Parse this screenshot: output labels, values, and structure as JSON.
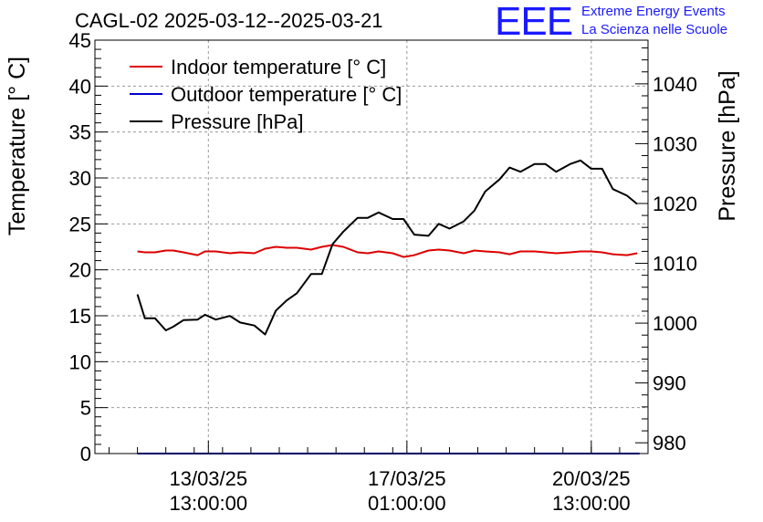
{
  "logo": {
    "mark": "EEE",
    "line1": "Extreme Energy Events",
    "line2": "La Scienza nelle Scuole"
  },
  "colors": {
    "indoor": "#dd0000",
    "outdoor": "#0000cc",
    "pressure": "#000000",
    "logo": "#1a1aff"
  },
  "chart_data": {
    "type": "line",
    "title": "CAGL-02 2025-03-12--2025-03-21",
    "ylabel": "Temperature [° C]",
    "y2label": "Pressure [hPa]",
    "ylim": [
      0,
      45
    ],
    "y2lim": [
      978.2,
      1047.3
    ],
    "xlim": [
      0,
      9.75
    ],
    "yticks": [
      "0",
      "5",
      "10",
      "15",
      "20",
      "25",
      "30",
      "35",
      "40",
      "45"
    ],
    "y2ticks": [
      "980",
      "990",
      "1000",
      "1010",
      "1020",
      "1030",
      "1040"
    ],
    "xticks": [
      {
        "x": 2.0,
        "date": "13/03/25",
        "time": "13:00:00"
      },
      {
        "x": 5.5,
        "date": "17/03/25",
        "time": "01:00:00"
      },
      {
        "x": 8.75,
        "date": "20/03/25",
        "time": "13:00:00"
      }
    ],
    "legend": {
      "position": "top-left",
      "entries": [
        "Indoor temperature [° C]",
        "Outdoor temperature [° C]",
        "Pressure [hPa]"
      ]
    },
    "grid": true,
    "series": [
      {
        "name": "Indoor temperature [° C]",
        "axis": "left",
        "x": [
          0.75,
          0.88,
          1.06,
          1.25,
          1.38,
          1.56,
          1.81,
          1.94,
          2.13,
          2.38,
          2.56,
          2.81,
          3.0,
          3.19,
          3.38,
          3.56,
          3.81,
          4.0,
          4.19,
          4.38,
          4.63,
          4.81,
          5.0,
          5.25,
          5.44,
          5.63,
          5.88,
          6.06,
          6.25,
          6.5,
          6.69,
          6.88,
          7.13,
          7.31,
          7.5,
          7.75,
          7.94,
          8.13,
          8.38,
          8.56,
          8.75,
          8.94,
          9.13,
          9.38,
          9.56
        ],
        "values": [
          22.0,
          21.9,
          21.9,
          22.1,
          22.1,
          21.9,
          21.6,
          22.0,
          22.0,
          21.8,
          21.9,
          21.8,
          22.3,
          22.5,
          22.4,
          22.4,
          22.2,
          22.5,
          22.7,
          22.5,
          21.9,
          21.8,
          22.0,
          21.8,
          21.4,
          21.6,
          22.1,
          22.2,
          22.1,
          21.8,
          22.1,
          22.0,
          21.9,
          21.7,
          22.0,
          22.0,
          21.9,
          21.8,
          21.9,
          22.0,
          22.0,
          21.9,
          21.7,
          21.6,
          21.8
        ]
      },
      {
        "name": "Outdoor temperature [° C]",
        "axis": "left",
        "x": [
          0.75,
          9.6
        ],
        "values": [
          0.0,
          0.0
        ]
      },
      {
        "name": "Pressure [hPa]",
        "axis": "right",
        "x": [
          0.75,
          0.88,
          1.06,
          1.25,
          1.38,
          1.56,
          1.81,
          1.94,
          2.13,
          2.38,
          2.56,
          2.81,
          3.0,
          3.19,
          3.38,
          3.56,
          3.81,
          4.0,
          4.19,
          4.38,
          4.63,
          4.81,
          5.0,
          5.25,
          5.44,
          5.63,
          5.88,
          6.06,
          6.25,
          6.5,
          6.69,
          6.88,
          7.13,
          7.31,
          7.5,
          7.75,
          7.94,
          8.13,
          8.38,
          8.56,
          8.75,
          8.94,
          9.13,
          9.38,
          9.56
        ],
        "values": [
          1004.8,
          1000.8,
          1000.8,
          998.8,
          999.4,
          1000.5,
          1000.6,
          1001.4,
          1000.6,
          1001.2,
          1000.1,
          999.6,
          998.1,
          1002.1,
          1003.8,
          1005.0,
          1008.2,
          1008.2,
          1013.2,
          1015.3,
          1017.6,
          1017.6,
          1018.5,
          1017.4,
          1017.4,
          1014.8,
          1014.6,
          1016.6,
          1015.8,
          1017.0,
          1018.8,
          1022.0,
          1024.0,
          1026.0,
          1025.3,
          1026.6,
          1026.6,
          1025.3,
          1026.6,
          1027.2,
          1025.8,
          1025.8,
          1022.4,
          1021.3,
          1019.9
        ]
      }
    ]
  }
}
